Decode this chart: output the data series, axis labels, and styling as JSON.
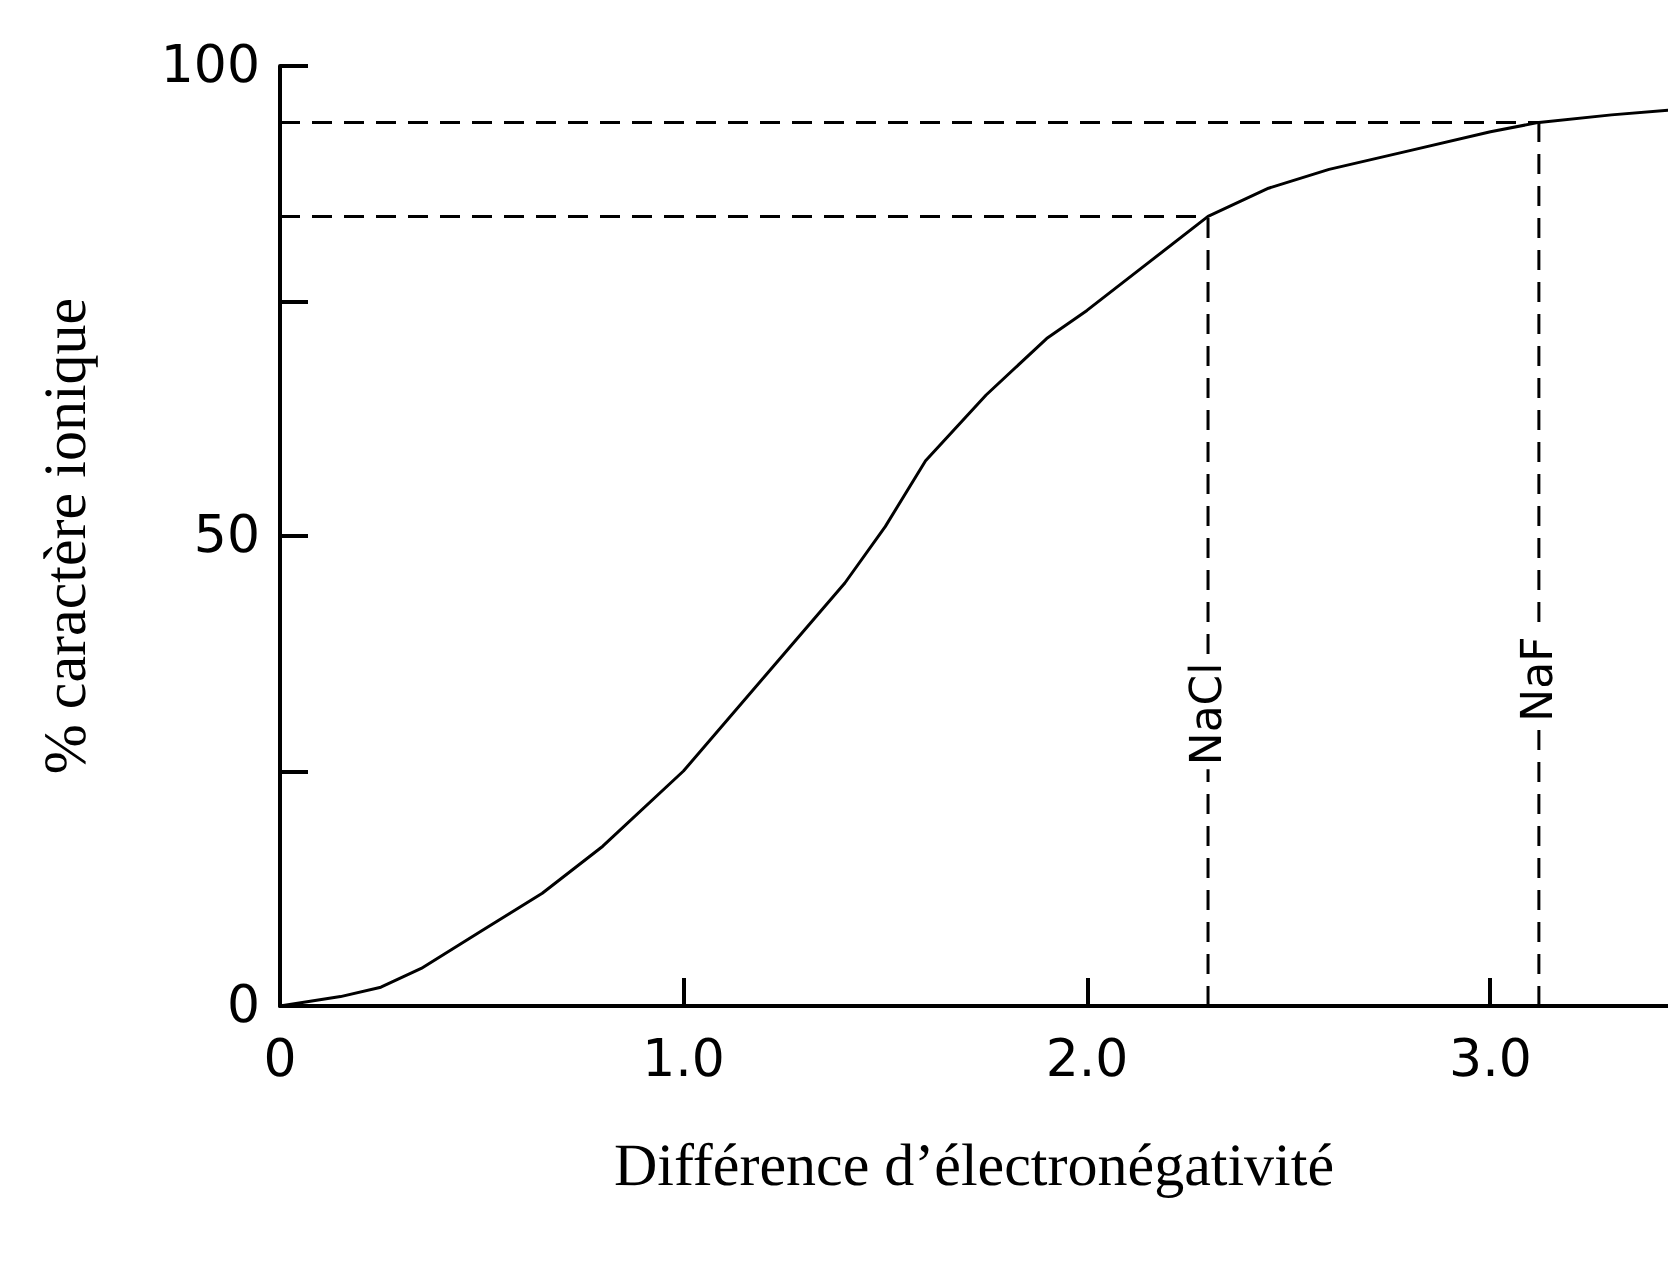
{
  "chart_data": {
    "type": "line",
    "xlabel": "Différence d’électronégativité",
    "ylabel": "% caractère ionique",
    "x": [
      0,
      0.15,
      0.25,
      0.35,
      0.5,
      0.65,
      0.8,
      1.0,
      1.2,
      1.4,
      1.5,
      1.6,
      1.75,
      1.9,
      2.0,
      2.15,
      2.3,
      2.45,
      2.6,
      2.8,
      3.0,
      3.12,
      3.3,
      3.44
    ],
    "series": [
      {
        "color": "#000000",
        "values": [
          0,
          1,
          2,
          4,
          8,
          12,
          17,
          25,
          35,
          45,
          51,
          58,
          65,
          71,
          74,
          79,
          84,
          87,
          89,
          91,
          93,
          94,
          94.8,
          95.3
        ]
      }
    ],
    "xlim": [
      0,
      3.44
    ],
    "ylim": [
      0,
      100
    ],
    "xticks": [
      0,
      {
        "value": 1,
        "label": "1.0"
      },
      {
        "value": 2,
        "label": "2.0"
      },
      {
        "value": 3,
        "label": "3.0"
      }
    ],
    "yticks": [
      0,
      {
        "value": 25,
        "label": null
      },
      50,
      {
        "value": 75,
        "label": null
      },
      100
    ],
    "ref_lines": [
      {
        "axis": "x",
        "value": 2.3,
        "label": "NaCl",
        "line_style": "dashed"
      },
      {
        "axis": "x",
        "value": 3.12,
        "label": "NaF",
        "line_style": "dashed"
      },
      {
        "axis": "y",
        "value": 84,
        "line_style": "dashed"
      },
      {
        "axis": "y",
        "value": 94,
        "line_style": "dashed"
      }
    ],
    "grid": false,
    "marker": "none",
    "line_style": "solid"
  }
}
